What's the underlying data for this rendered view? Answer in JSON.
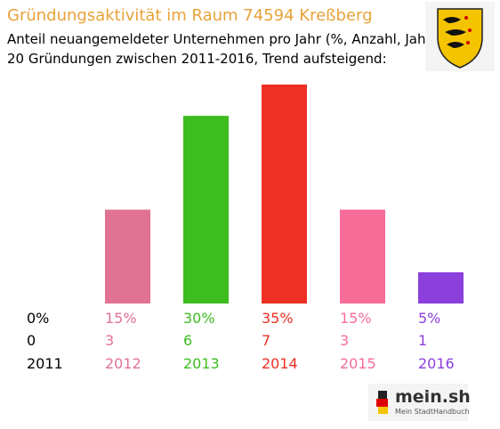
{
  "title": "Gründungsaktivität im Raum 74594 Kreßberg",
  "subtitle_line1": "Anteil neuangemeldeter Unternehmen pro Jahr (%, Anzahl, Jahr)",
  "subtitle_line2": "20 Gründungen zwischen 2011-2016, Trend aufsteigend:",
  "brand": {
    "name": "mein.sh",
    "tagline": "Mein StadtHandbuch"
  },
  "crest_icon": "baden-wuerttemberg-coat-of-arms-icon",
  "colors": {
    "title": "#e8a33a"
  },
  "chart_data": {
    "type": "bar",
    "categories": [
      "2011",
      "2012",
      "2013",
      "2014",
      "2015",
      "2016"
    ],
    "values": [
      0,
      15,
      30,
      35,
      15,
      5
    ],
    "counts": [
      0,
      3,
      6,
      7,
      3,
      1
    ],
    "percent_labels": [
      "0%",
      "15%",
      "30%",
      "35%",
      "15%",
      "5%"
    ],
    "count_labels": [
      "0",
      "3",
      "6",
      "7",
      "3",
      "1"
    ],
    "colors": [
      "#000000",
      "#e07294",
      "#3dbd1f",
      "#ee2f23",
      "#f76c98",
      "#8b3fdb"
    ],
    "ylim": [
      0,
      35
    ],
    "grid": false,
    "legend": "none"
  }
}
